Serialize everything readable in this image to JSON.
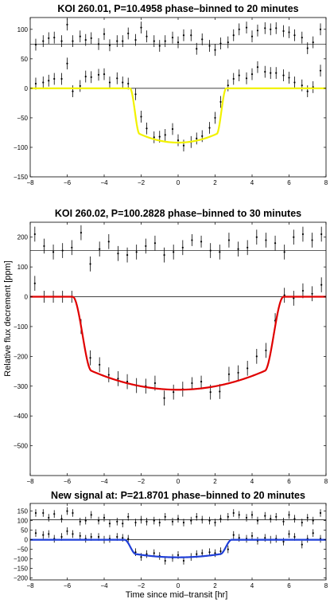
{
  "figure": {
    "ylabel": "Relative flux decrement [ppm]",
    "xlabel": "Time since mid–transit [hr]"
  },
  "chart_data": [
    {
      "type": "scatter",
      "title": "KOI 260.01, P=10.4958 phase–binned to 20 minutes",
      "xlim": [
        -8,
        8
      ],
      "ylim": [
        -150,
        120
      ],
      "xticks": [
        -8,
        -6,
        -4,
        -2,
        0,
        2,
        4,
        6,
        8
      ],
      "yticks": [
        -150,
        -100,
        -50,
        0,
        50,
        100
      ],
      "grid": false,
      "reference_lines": [
        0,
        75
      ],
      "model_color": "#f2f200",
      "model": {
        "depth": 92,
        "half_duration": 2.6,
        "ingress": 0.5,
        "curvature": 0.25
      },
      "binned_data": [
        [
          -7.7,
          8,
          10
        ],
        [
          -7.3,
          10,
          10
        ],
        [
          -7.0,
          13,
          10
        ],
        [
          -6.7,
          16,
          10
        ],
        [
          -6.3,
          16,
          10
        ],
        [
          -6.0,
          42,
          10
        ],
        [
          -5.7,
          -5,
          10
        ],
        [
          -5.3,
          4,
          10
        ],
        [
          -5.0,
          20,
          10
        ],
        [
          -4.7,
          19,
          10
        ],
        [
          -4.3,
          23,
          10
        ],
        [
          -4.0,
          24,
          10
        ],
        [
          -3.7,
          10,
          10
        ],
        [
          -3.3,
          17,
          10
        ],
        [
          -3.0,
          10,
          10
        ],
        [
          -2.7,
          8,
          10
        ],
        [
          -2.3,
          -10,
          10
        ],
        [
          -2.0,
          -48,
          10
        ],
        [
          -1.7,
          -68,
          10
        ],
        [
          -1.3,
          -83,
          10
        ],
        [
          -1.0,
          -82,
          10
        ],
        [
          -0.7,
          -79,
          10
        ],
        [
          -0.3,
          -69,
          10
        ],
        [
          0.0,
          -88,
          10
        ],
        [
          0.3,
          -97,
          10
        ],
        [
          0.7,
          -91,
          10
        ],
        [
          1.0,
          -85,
          10
        ],
        [
          1.3,
          -81,
          10
        ],
        [
          1.7,
          -67,
          10
        ],
        [
          2.0,
          -50,
          10
        ],
        [
          2.3,
          -23,
          10
        ],
        [
          2.7,
          5,
          10
        ],
        [
          3.0,
          16,
          10
        ],
        [
          3.3,
          22,
          10
        ],
        [
          3.7,
          17,
          10
        ],
        [
          4.0,
          24,
          10
        ],
        [
          4.3,
          36,
          10
        ],
        [
          4.7,
          28,
          10
        ],
        [
          5.0,
          26,
          10
        ],
        [
          5.3,
          26,
          10
        ],
        [
          5.7,
          22,
          10
        ],
        [
          6.0,
          18,
          10
        ],
        [
          6.3,
          10,
          10
        ],
        [
          6.7,
          5,
          10
        ],
        [
          7.0,
          -5,
          10
        ],
        [
          7.3,
          2,
          10
        ],
        [
          7.7,
          30,
          10
        ]
      ],
      "unbinned_data": [
        [
          -7.7,
          74,
          10
        ],
        [
          -7.3,
          80,
          10
        ],
        [
          -7.0,
          85,
          10
        ],
        [
          -6.7,
          86,
          10
        ],
        [
          -6.3,
          80,
          10
        ],
        [
          -6.0,
          108,
          10
        ],
        [
          -5.7,
          80,
          10
        ],
        [
          -5.3,
          88,
          10
        ],
        [
          -5.0,
          82,
          10
        ],
        [
          -4.7,
          85,
          10
        ],
        [
          -4.3,
          75,
          10
        ],
        [
          -4.0,
          92,
          10
        ],
        [
          -3.7,
          73,
          10
        ],
        [
          -3.3,
          80,
          10
        ],
        [
          -3.0,
          80,
          10
        ],
        [
          -2.7,
          93,
          10
        ],
        [
          -2.3,
          82,
          10
        ],
        [
          -2.0,
          103,
          10
        ],
        [
          -1.7,
          88,
          10
        ],
        [
          -1.3,
          80,
          10
        ],
        [
          -1.0,
          72,
          10
        ],
        [
          -0.7,
          80,
          10
        ],
        [
          -0.3,
          86,
          10
        ],
        [
          0.0,
          78,
          10
        ],
        [
          0.3,
          90,
          10
        ],
        [
          0.7,
          90,
          10
        ],
        [
          1.0,
          67,
          10
        ],
        [
          1.3,
          83,
          10
        ],
        [
          1.7,
          72,
          10
        ],
        [
          2.0,
          65,
          10
        ],
        [
          2.3,
          76,
          10
        ],
        [
          2.7,
          78,
          10
        ],
        [
          3.0,
          90,
          10
        ],
        [
          3.3,
          100,
          10
        ],
        [
          3.7,
          103,
          10
        ],
        [
          4.0,
          88,
          10
        ],
        [
          4.3,
          98,
          10
        ],
        [
          4.7,
          102,
          10
        ],
        [
          5.0,
          100,
          10
        ],
        [
          5.3,
          102,
          10
        ],
        [
          5.7,
          97,
          10
        ],
        [
          6.0,
          95,
          10
        ],
        [
          6.3,
          90,
          10
        ],
        [
          6.7,
          86,
          10
        ],
        [
          7.0,
          68,
          10
        ],
        [
          7.3,
          78,
          10
        ],
        [
          7.7,
          100,
          10
        ]
      ]
    },
    {
      "type": "scatter",
      "title": "KOI 260.02, P=100.2828 phase–binned to 30 minutes",
      "xlim": [
        -8,
        8
      ],
      "ylim": [
        -600,
        250
      ],
      "xticks": [
        -8,
        -6,
        -4,
        -2,
        0,
        2,
        4,
        6,
        8
      ],
      "yticks": [
        -500,
        -400,
        -300,
        -200,
        -100,
        0,
        100,
        200
      ],
      "grid": false,
      "reference_lines": [
        0,
        155
      ],
      "model_color": "#e00000",
      "model": {
        "depth": 312,
        "half_duration": 5.7,
        "ingress": 1.0,
        "curvature": 0.3
      },
      "binned_data": [
        [
          -7.75,
          45,
          25
        ],
        [
          -7.25,
          0,
          20
        ],
        [
          -6.75,
          0,
          20
        ],
        [
          -6.25,
          0,
          20
        ],
        [
          -5.75,
          0,
          20
        ],
        [
          -5.25,
          -100,
          25
        ],
        [
          -4.75,
          -205,
          25
        ],
        [
          -4.25,
          -228,
          25
        ],
        [
          -3.75,
          -262,
          25
        ],
        [
          -3.25,
          -275,
          25
        ],
        [
          -2.75,
          -285,
          25
        ],
        [
          -2.25,
          -298,
          25
        ],
        [
          -1.75,
          -300,
          25
        ],
        [
          -1.25,
          -290,
          25
        ],
        [
          -0.75,
          -340,
          25
        ],
        [
          -0.25,
          -320,
          25
        ],
        [
          0.25,
          -310,
          25
        ],
        [
          0.75,
          -290,
          20
        ],
        [
          1.25,
          -285,
          20
        ],
        [
          1.75,
          -320,
          25
        ],
        [
          2.25,
          -318,
          25
        ],
        [
          2.75,
          -260,
          25
        ],
        [
          3.25,
          -255,
          25
        ],
        [
          3.75,
          -240,
          25
        ],
        [
          4.25,
          -200,
          25
        ],
        [
          4.75,
          -180,
          25
        ],
        [
          5.25,
          -80,
          25
        ],
        [
          5.75,
          5,
          25
        ],
        [
          6.25,
          -5,
          25
        ],
        [
          6.75,
          20,
          25
        ],
        [
          7.25,
          10,
          25
        ],
        [
          7.75,
          40,
          25
        ]
      ],
      "unbinned_data": [
        [
          -7.75,
          210,
          25
        ],
        [
          -7.25,
          170,
          25
        ],
        [
          -6.75,
          150,
          25
        ],
        [
          -6.25,
          155,
          25
        ],
        [
          -5.75,
          165,
          25
        ],
        [
          -5.25,
          215,
          25
        ],
        [
          -4.75,
          110,
          25
        ],
        [
          -4.25,
          160,
          25
        ],
        [
          -3.75,
          185,
          25
        ],
        [
          -3.25,
          145,
          25
        ],
        [
          -2.75,
          140,
          25
        ],
        [
          -2.25,
          150,
          25
        ],
        [
          -1.75,
          170,
          25
        ],
        [
          -1.25,
          180,
          25
        ],
        [
          -0.75,
          140,
          25
        ],
        [
          -0.25,
          150,
          25
        ],
        [
          0.25,
          165,
          25
        ],
        [
          0.75,
          190,
          20
        ],
        [
          1.25,
          185,
          20
        ],
        [
          1.75,
          155,
          25
        ],
        [
          2.25,
          150,
          25
        ],
        [
          2.75,
          190,
          25
        ],
        [
          3.25,
          160,
          25
        ],
        [
          3.75,
          165,
          25
        ],
        [
          4.25,
          200,
          25
        ],
        [
          4.75,
          190,
          25
        ],
        [
          5.25,
          180,
          25
        ],
        [
          5.75,
          150,
          25
        ],
        [
          6.25,
          200,
          25
        ],
        [
          6.75,
          210,
          25
        ],
        [
          7.25,
          190,
          25
        ],
        [
          7.75,
          210,
          25
        ]
      ]
    },
    {
      "type": "scatter",
      "title": "New signal at: P=21.8701 phase–binned to 20 minutes",
      "xlim": [
        -8,
        8
      ],
      "ylim": [
        -210,
        190
      ],
      "xticks": [
        -8,
        -6,
        -4,
        -2,
        0,
        2,
        4,
        6,
        8
      ],
      "yticks": [
        -200,
        -150,
        -100,
        -50,
        0,
        50,
        100,
        150
      ],
      "grid": false,
      "reference_lines": [
        0,
        105
      ],
      "model_color": "#1f3fd8",
      "model": {
        "depth": 92,
        "half_duration": 2.9,
        "ingress": 0.6,
        "curvature": 0.3
      },
      "binned_data": [
        [
          -7.7,
          35,
          20
        ],
        [
          -7.3,
          25,
          20
        ],
        [
          -7.0,
          30,
          20
        ],
        [
          -6.7,
          5,
          20
        ],
        [
          -6.3,
          15,
          20
        ],
        [
          -6.0,
          45,
          20
        ],
        [
          -5.7,
          30,
          20
        ],
        [
          -5.3,
          20,
          20
        ],
        [
          -5.0,
          5,
          20
        ],
        [
          -4.7,
          15,
          20
        ],
        [
          -4.3,
          15,
          20
        ],
        [
          -4.0,
          0,
          20
        ],
        [
          -3.7,
          5,
          20
        ],
        [
          -3.3,
          15,
          20
        ],
        [
          -3.0,
          10,
          20
        ],
        [
          -2.7,
          5,
          20
        ],
        [
          -2.3,
          -65,
          20
        ],
        [
          -2.0,
          -90,
          20
        ],
        [
          -1.7,
          -75,
          20
        ],
        [
          -1.3,
          -70,
          20
        ],
        [
          -1.0,
          -85,
          20
        ],
        [
          -0.7,
          -110,
          20
        ],
        [
          -0.3,
          -95,
          20
        ],
        [
          0.0,
          -80,
          20
        ],
        [
          0.3,
          -110,
          20
        ],
        [
          0.7,
          -90,
          20
        ],
        [
          1.0,
          -75,
          20
        ],
        [
          1.3,
          -70,
          20
        ],
        [
          1.7,
          -65,
          20
        ],
        [
          2.0,
          -70,
          20
        ],
        [
          2.3,
          -60,
          20
        ],
        [
          2.7,
          -50,
          20
        ],
        [
          3.0,
          25,
          20
        ],
        [
          3.3,
          10,
          20
        ],
        [
          3.7,
          5,
          20
        ],
        [
          4.0,
          20,
          20
        ],
        [
          4.3,
          -5,
          20
        ],
        [
          4.7,
          10,
          20
        ],
        [
          5.0,
          0,
          20
        ],
        [
          5.3,
          5,
          20
        ],
        [
          5.7,
          -10,
          20
        ],
        [
          6.0,
          30,
          20
        ],
        [
          6.3,
          15,
          20
        ],
        [
          6.7,
          -25,
          20
        ],
        [
          7.0,
          5,
          20
        ],
        [
          7.3,
          35,
          20
        ],
        [
          7.7,
          5,
          20
        ]
      ],
      "unbinned_data": [
        [
          -7.7,
          140,
          20
        ],
        [
          -7.3,
          140,
          20
        ],
        [
          -7.0,
          115,
          20
        ],
        [
          -6.7,
          135,
          20
        ],
        [
          -6.3,
          110,
          20
        ],
        [
          -6.0,
          150,
          20
        ],
        [
          -5.7,
          140,
          20
        ],
        [
          -5.3,
          95,
          20
        ],
        [
          -5.0,
          100,
          20
        ],
        [
          -4.7,
          130,
          20
        ],
        [
          -4.3,
          100,
          20
        ],
        [
          -4.0,
          115,
          20
        ],
        [
          -3.7,
          85,
          20
        ],
        [
          -3.3,
          95,
          20
        ],
        [
          -3.0,
          85,
          20
        ],
        [
          -2.7,
          120,
          20
        ],
        [
          -2.3,
          90,
          20
        ],
        [
          -2.0,
          105,
          20
        ],
        [
          -1.7,
          95,
          20
        ],
        [
          -1.3,
          100,
          20
        ],
        [
          -1.0,
          90,
          20
        ],
        [
          -0.7,
          120,
          20
        ],
        [
          -0.3,
          95,
          20
        ],
        [
          0.0,
          110,
          20
        ],
        [
          0.3,
          90,
          20
        ],
        [
          0.7,
          100,
          20
        ],
        [
          1.0,
          120,
          20
        ],
        [
          1.3,
          105,
          20
        ],
        [
          1.7,
          100,
          20
        ],
        [
          2.0,
          90,
          20
        ],
        [
          2.3,
          110,
          20
        ],
        [
          2.7,
          120,
          20
        ],
        [
          3.0,
          140,
          20
        ],
        [
          3.3,
          130,
          20
        ],
        [
          3.7,
          115,
          20
        ],
        [
          4.0,
          130,
          20
        ],
        [
          4.3,
          100,
          20
        ],
        [
          4.7,
          125,
          20
        ],
        [
          5.0,
          110,
          20
        ],
        [
          5.3,
          120,
          20
        ],
        [
          5.7,
          95,
          20
        ],
        [
          6.0,
          130,
          20
        ],
        [
          6.3,
          110,
          20
        ],
        [
          6.7,
          90,
          20
        ],
        [
          7.0,
          115,
          20
        ],
        [
          7.3,
          100,
          20
        ],
        [
          7.7,
          140,
          20
        ]
      ]
    }
  ]
}
